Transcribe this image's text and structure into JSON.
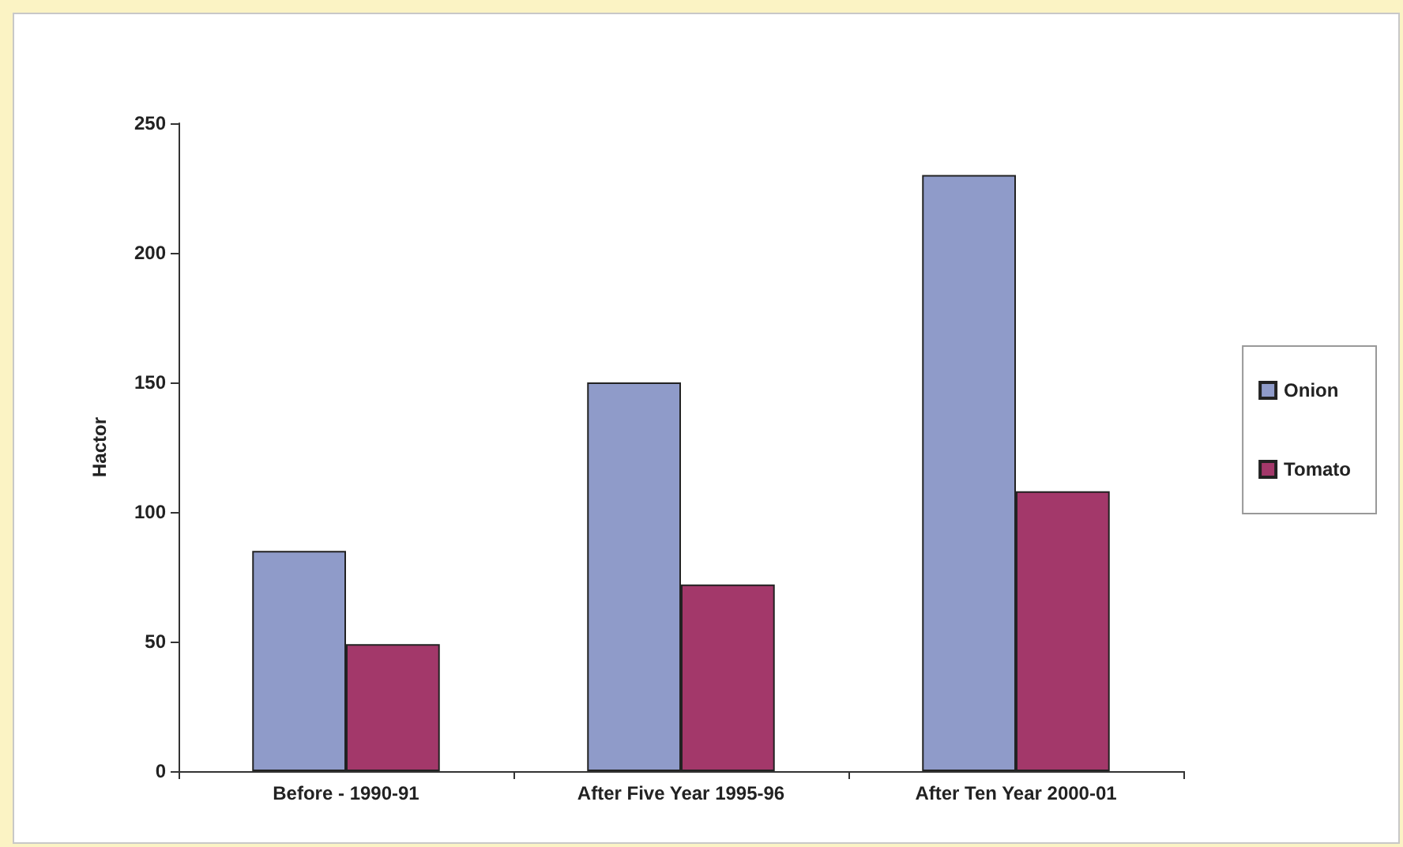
{
  "chart_data": {
    "type": "bar",
    "categories": [
      "Before - 1990-91",
      "After Five Year 1995-96",
      "After Ten Year 2000-01"
    ],
    "series": [
      {
        "name": "Onion",
        "color": "#8f9bc9",
        "values": [
          85,
          150,
          230
        ]
      },
      {
        "name": "Tomato",
        "color": "#a3386a",
        "values": [
          49,
          72,
          108
        ]
      }
    ],
    "ylabel": "Hactor",
    "ylim": [
      0,
      250
    ],
    "yticks": [
      0,
      50,
      100,
      150,
      200,
      250
    ],
    "grid": false,
    "legend": "right"
  }
}
